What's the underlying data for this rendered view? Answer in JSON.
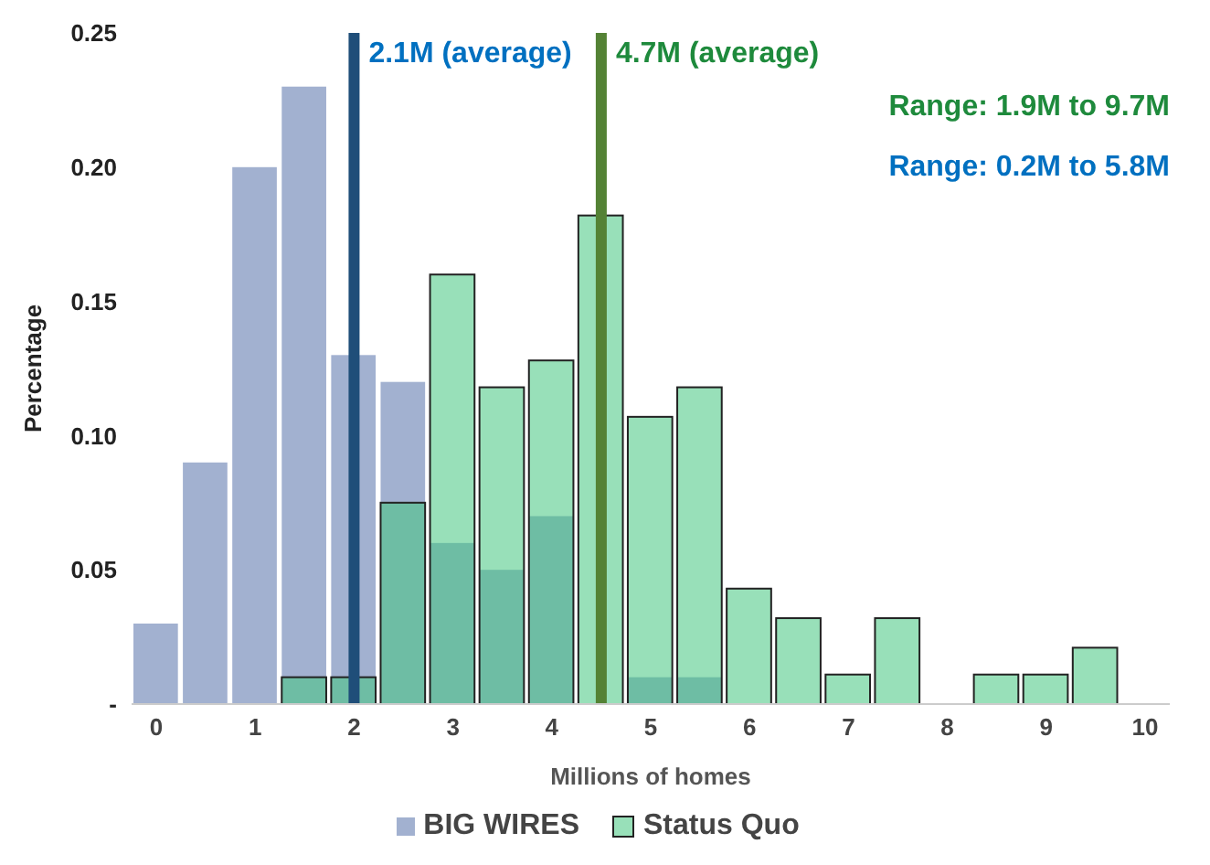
{
  "chart_data": {
    "type": "histogram",
    "xlabel": "Millions of homes",
    "ylabel": "Percentage",
    "bins": [
      -0.25,
      0.25,
      0.75,
      1.25,
      1.75,
      2.25,
      2.75,
      3.25,
      3.75,
      4.25,
      4.75,
      5.25,
      5.75,
      6.25,
      6.75,
      7.25,
      7.75,
      8.25,
      8.75,
      9.25,
      9.75
    ],
    "series": [
      {
        "name": "BIG WIRES",
        "color": "#a2b1d0",
        "values": [
          0.03,
          0.09,
          0.2,
          0.23,
          0.13,
          0.12,
          0.06,
          0.05,
          0.07,
          0,
          0.01,
          0.01,
          0,
          0,
          0,
          0,
          0,
          0,
          0,
          0
        ]
      },
      {
        "name": "Status Quo",
        "color": "#98e0b9",
        "values": [
          0,
          0,
          0,
          0.01,
          0.01,
          0.075,
          0.16,
          0.118,
          0.128,
          0.182,
          0.107,
          0.118,
          0.043,
          0.032,
          0.011,
          0.032,
          0,
          0.011,
          0.011,
          0.021
        ]
      }
    ],
    "xlim": [
      -0.25,
      10.25
    ],
    "xticks": [
      0,
      1,
      2,
      3,
      4,
      5,
      6,
      7,
      8,
      9,
      10
    ],
    "ylim": [
      0,
      0.25
    ],
    "yticks": [
      {
        "value": 0,
        "label": "-"
      },
      0.05,
      {
        "value": 0.1,
        "label": "0.10"
      },
      0.15,
      {
        "value": 0.2,
        "label": "0.20"
      },
      0.25
    ],
    "ref_lines": [
      {
        "axis": "x",
        "value": 2.0,
        "label": "2.1M (average)",
        "color": "#1f4e79"
      },
      {
        "axis": "x",
        "value": 4.5,
        "label": "4.7M (average)",
        "color": "#548235"
      }
    ],
    "annotations": [
      "Range: 1.9M to 9.7M",
      "Range: 0.2M to 5.8M"
    ],
    "grid": false,
    "legend": "bottom"
  }
}
